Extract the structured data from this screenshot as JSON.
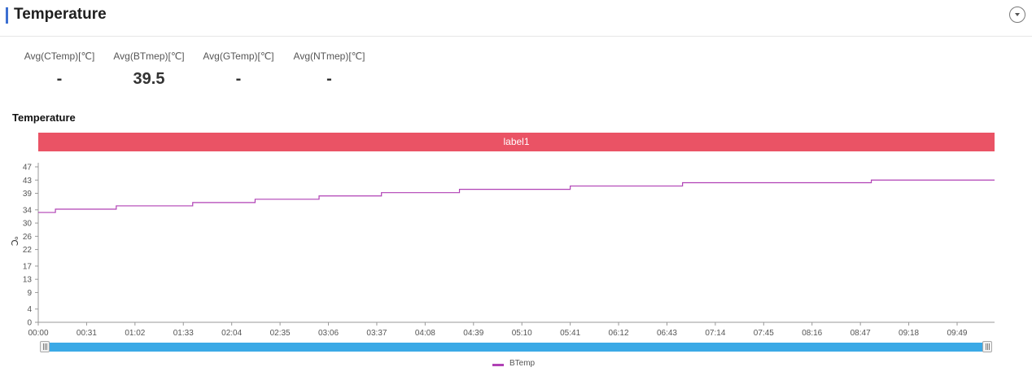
{
  "header": {
    "title": "Temperature",
    "collapse_icon": "chevron-down-circle-icon",
    "accent_color": "#3c6fd1"
  },
  "stats": [
    {
      "label": "Avg(CTemp)[℃]",
      "value": "-"
    },
    {
      "label": "Avg(BTmep)[℃]",
      "value": "39.5"
    },
    {
      "label": "Avg(GTemp)[℃]",
      "value": "-"
    },
    {
      "label": "Avg(NTmep)[℃]",
      "value": "-"
    }
  ],
  "section": {
    "title": "Temperature"
  },
  "band": {
    "label": "label1",
    "color": "#ea5365"
  },
  "chart_data": {
    "type": "line",
    "ylabel": "℃",
    "ylim": [
      0,
      47
    ],
    "yticks": [
      "47",
      "43",
      "39",
      "34",
      "30",
      "26",
      "22",
      "17",
      "13",
      "9",
      "4",
      "0"
    ],
    "xlim": [
      "00:00",
      "10:13"
    ],
    "xticks": [
      "00:00",
      "00:31",
      "01:02",
      "01:33",
      "02:04",
      "02:35",
      "03:06",
      "03:37",
      "04:08",
      "04:39",
      "05:10",
      "05:41",
      "06:12",
      "06:43",
      "07:14",
      "07:45",
      "08:16",
      "08:47",
      "09:18",
      "09:49"
    ],
    "series": [
      {
        "name": "BTemp",
        "color": "#b041b5",
        "step": true,
        "points": [
          [
            "00:00",
            33.2
          ],
          [
            "00:11",
            34.2
          ],
          [
            "00:50",
            35.2
          ],
          [
            "01:39",
            36.2
          ],
          [
            "02:19",
            37.2
          ],
          [
            "03:00",
            38.2
          ],
          [
            "03:40",
            39.2
          ],
          [
            "04:30",
            40.2
          ],
          [
            "05:41",
            41.2
          ],
          [
            "06:53",
            42.2
          ],
          [
            "08:54",
            43.0
          ],
          [
            "10:13",
            43.0
          ]
        ]
      }
    ],
    "grid": false,
    "legend": "bottom-center"
  },
  "slider": {
    "color": "#3aa9e6"
  }
}
